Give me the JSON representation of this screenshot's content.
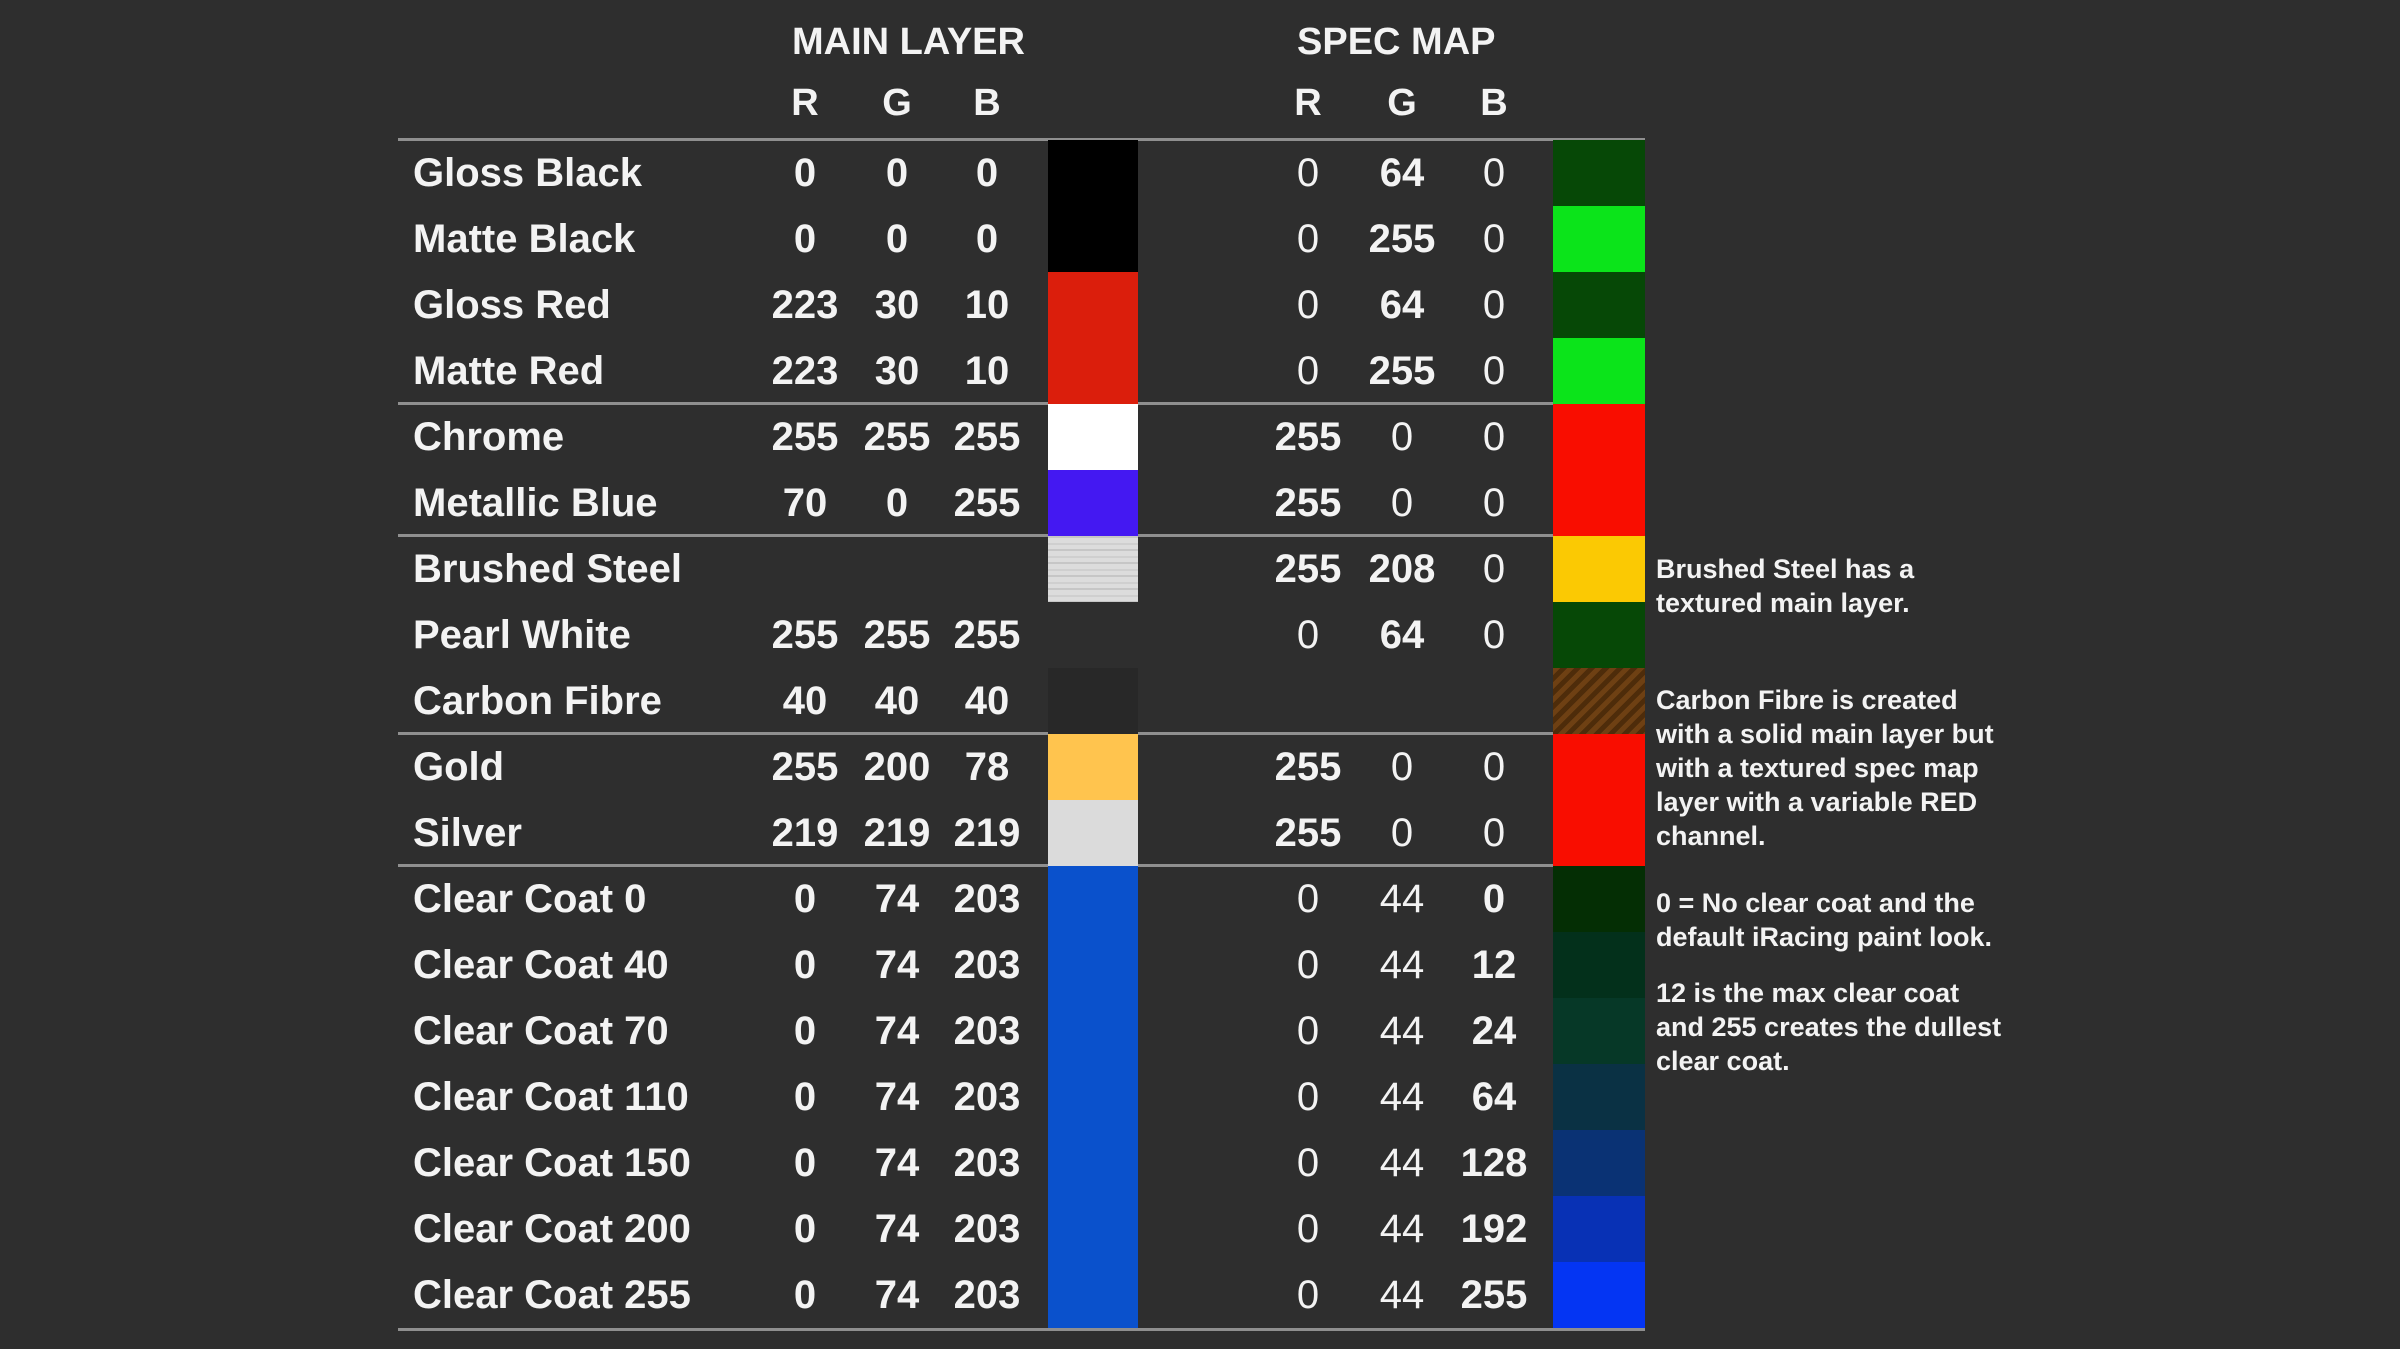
{
  "headers": {
    "main_layer": "MAIN LAYER",
    "spec_map": "SPEC MAP",
    "cols": [
      "R",
      "G",
      "B"
    ]
  },
  "rows": [
    {
      "label": "Gloss Black",
      "main": [
        "0",
        "0",
        "0"
      ],
      "spec": [
        "0",
        "64",
        "0"
      ],
      "spec_bold": [
        false,
        true,
        false
      ]
    },
    {
      "label": "Matte Black",
      "main": [
        "0",
        "0",
        "0"
      ],
      "spec": [
        "0",
        "255",
        "0"
      ],
      "spec_bold": [
        false,
        true,
        false
      ]
    },
    {
      "label": "Gloss Red",
      "main": [
        "223",
        "30",
        "10"
      ],
      "spec": [
        "0",
        "64",
        "0"
      ],
      "spec_bold": [
        false,
        true,
        false
      ]
    },
    {
      "label": "Matte Red",
      "main": [
        "223",
        "30",
        "10"
      ],
      "spec": [
        "0",
        "255",
        "0"
      ],
      "spec_bold": [
        false,
        true,
        false
      ]
    },
    {
      "label": "Chrome",
      "main": [
        "255",
        "255",
        "255"
      ],
      "spec": [
        "255",
        "0",
        "0"
      ],
      "spec_bold": [
        true,
        false,
        false
      ]
    },
    {
      "label": "Metallic Blue",
      "main": [
        "70",
        "0",
        "255"
      ],
      "spec": [
        "255",
        "0",
        "0"
      ],
      "spec_bold": [
        true,
        false,
        false
      ]
    },
    {
      "label": "Brushed Steel",
      "main": null,
      "spec": [
        "255",
        "208",
        "0"
      ],
      "spec_bold": [
        true,
        true,
        false
      ]
    },
    {
      "label": "Pearl White",
      "main": [
        "255",
        "255",
        "255"
      ],
      "spec": [
        "0",
        "64",
        "0"
      ],
      "spec_bold": [
        false,
        true,
        false
      ]
    },
    {
      "label": "Carbon Fibre",
      "main": [
        "40",
        "40",
        "40"
      ],
      "spec": null,
      "spec_bold": null
    },
    {
      "label": "Gold",
      "main": [
        "255",
        "200",
        "78"
      ],
      "spec": [
        "255",
        "0",
        "0"
      ],
      "spec_bold": [
        true,
        false,
        false
      ]
    },
    {
      "label": "Silver",
      "main": [
        "219",
        "219",
        "219"
      ],
      "spec": [
        "255",
        "0",
        "0"
      ],
      "spec_bold": [
        true,
        false,
        false
      ]
    },
    {
      "label": "Clear Coat 0",
      "main": [
        "0",
        "74",
        "203"
      ],
      "spec": [
        "0",
        "44",
        "0"
      ],
      "spec_bold": [
        false,
        false,
        true
      ]
    },
    {
      "label": "Clear Coat 40",
      "main": [
        "0",
        "74",
        "203"
      ],
      "spec": [
        "0",
        "44",
        "12"
      ],
      "spec_bold": [
        false,
        false,
        true
      ]
    },
    {
      "label": "Clear Coat 70",
      "main": [
        "0",
        "74",
        "203"
      ],
      "spec": [
        "0",
        "44",
        "24"
      ],
      "spec_bold": [
        false,
        false,
        true
      ]
    },
    {
      "label": "Clear Coat 110",
      "main": [
        "0",
        "74",
        "203"
      ],
      "spec": [
        "0",
        "44",
        "64"
      ],
      "spec_bold": [
        false,
        false,
        true
      ]
    },
    {
      "label": "Clear Coat 150",
      "main": [
        "0",
        "74",
        "203"
      ],
      "spec": [
        "0",
        "44",
        "128"
      ],
      "spec_bold": [
        false,
        false,
        true
      ]
    },
    {
      "label": "Clear Coat 200",
      "main": [
        "0",
        "74",
        "203"
      ],
      "spec": [
        "0",
        "44",
        "192"
      ],
      "spec_bold": [
        false,
        false,
        true
      ]
    },
    {
      "label": "Clear Coat 255",
      "main": [
        "0",
        "74",
        "203"
      ],
      "spec": [
        "0",
        "44",
        "255"
      ],
      "spec_bold": [
        false,
        false,
        true
      ]
    }
  ],
  "main_segments": [
    {
      "start": 0,
      "end": 1,
      "color": "#000000"
    },
    {
      "start": 2,
      "end": 3,
      "color": "#DB1E0C"
    },
    {
      "start": 4,
      "end": 4,
      "color": "#FFFFFF"
    },
    {
      "start": 5,
      "end": 5,
      "color": "#4418F2"
    },
    {
      "start": 6,
      "end": 6,
      "texture": "brushed"
    },
    {
      "start": 8,
      "end": 8,
      "color": "#282828"
    },
    {
      "start": 9,
      "end": 9,
      "color": "#FFC44E"
    },
    {
      "start": 10,
      "end": 10,
      "color": "#DBDBDB"
    },
    {
      "start": 11,
      "end": 17,
      "color": "#0A51CC"
    }
  ],
  "spec_segments": [
    {
      "start": 0,
      "end": 0,
      "color": "#064806"
    },
    {
      "start": 1,
      "end": 1,
      "color": "#0BE41A"
    },
    {
      "start": 2,
      "end": 2,
      "color": "#064806"
    },
    {
      "start": 3,
      "end": 3,
      "color": "#0BE41A"
    },
    {
      "start": 4,
      "end": 5,
      "color": "#F90D00"
    },
    {
      "start": 6,
      "end": 6,
      "color": "#FBC903"
    },
    {
      "start": 7,
      "end": 7,
      "color": "#064806"
    },
    {
      "start": 8,
      "end": 8,
      "texture": "carbon"
    },
    {
      "start": 9,
      "end": 10,
      "color": "#F90D00"
    },
    {
      "start": 11,
      "end": 11,
      "color": "#042E04"
    },
    {
      "start": 12,
      "end": 12,
      "color": "#03301B"
    },
    {
      "start": 13,
      "end": 13,
      "color": "#063827"
    },
    {
      "start": 14,
      "end": 14,
      "color": "#0A3144"
    },
    {
      "start": 15,
      "end": 15,
      "color": "#0A3274"
    },
    {
      "start": 16,
      "end": 16,
      "color": "#0831B5"
    },
    {
      "start": 17,
      "end": 17,
      "color": "#0435F3"
    }
  ],
  "table": {
    "section_breaks": [
      4,
      6,
      9,
      11
    ]
  },
  "annotations": [
    {
      "lines": [
        "Brushed Steel has a",
        "textured main layer."
      ]
    },
    {
      "lines": [
        "Carbon Fibre is created",
        "with a solid main layer but",
        "with a textured spec map",
        "layer with a variable RED",
        "channel."
      ]
    },
    {
      "lines": [
        "0 = No clear coat and the",
        "default iRacing paint look."
      ]
    },
    {
      "lines": [
        "12 is the max clear coat",
        "and 255 creates the dullest",
        "clear coat."
      ]
    }
  ],
  "colors": {
    "background": "#2E2E2E",
    "text": "#F3F3F3",
    "separator_line": "#8F8F8F"
  }
}
